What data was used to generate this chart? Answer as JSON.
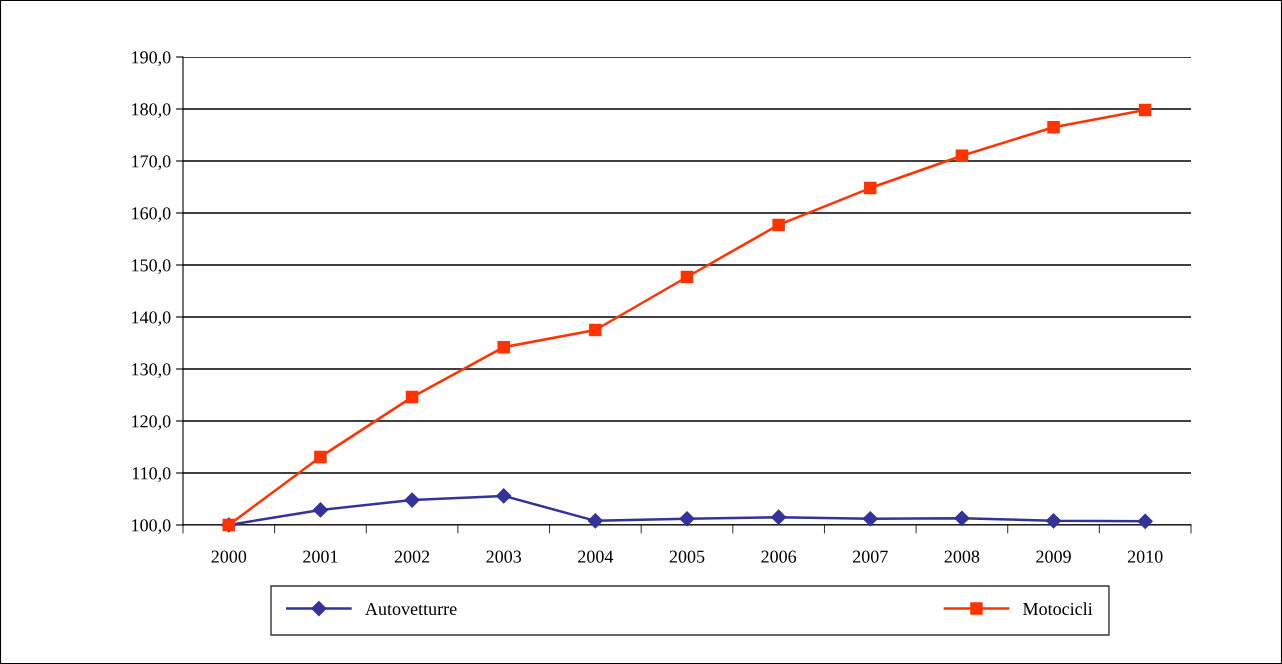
{
  "chart_data": {
    "type": "line",
    "categories": [
      "2000",
      "2001",
      "2002",
      "2003",
      "2004",
      "2005",
      "2006",
      "2007",
      "2008",
      "2009",
      "2010"
    ],
    "series": [
      {
        "name": "Autovetturre",
        "color": "#333399",
        "marker": "diamond",
        "values": [
          100.0,
          102.9,
          104.8,
          105.6,
          100.8,
          101.2,
          101.5,
          101.2,
          101.3,
          100.8,
          100.7
        ]
      },
      {
        "name": "Motocicli",
        "color": "#ff3300",
        "marker": "square",
        "values": [
          100.0,
          113.1,
          124.6,
          134.2,
          137.5,
          147.7,
          157.7,
          164.8,
          171.0,
          176.5,
          179.8
        ]
      }
    ],
    "ylim": [
      100,
      190
    ],
    "yticks": [
      {
        "value": 100,
        "label": "100,0"
      },
      {
        "value": 110,
        "label": "110,0"
      },
      {
        "value": 120,
        "label": "120,0"
      },
      {
        "value": 130,
        "label": "130,0"
      },
      {
        "value": 140,
        "label": "140,0"
      },
      {
        "value": 150,
        "label": "150,0"
      },
      {
        "value": 160,
        "label": "160,0"
      },
      {
        "value": 170,
        "label": "170,0"
      },
      {
        "value": 180,
        "label": "180,0"
      },
      {
        "value": 190,
        "label": "190,0"
      }
    ],
    "grid": "y",
    "legend": "bottom",
    "line_style": "solid"
  }
}
